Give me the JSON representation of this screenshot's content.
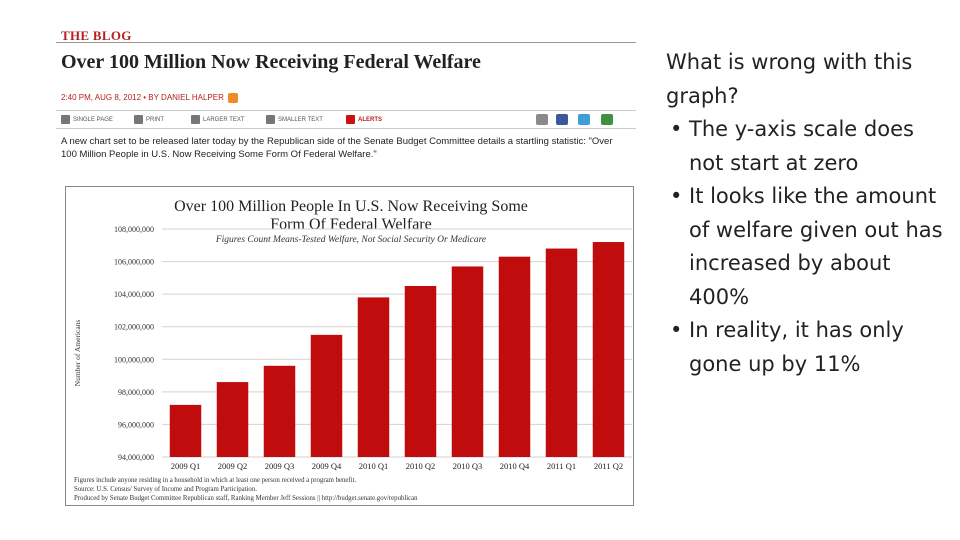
{
  "blog": {
    "tag": "THE BLOG",
    "headline": "Over 100 Million Now Receiving Federal Welfare",
    "byline": "2:40 PM, AUG 8, 2012 • BY DANIEL HALPER",
    "toolbar": [
      {
        "label": "SINGLE PAGE",
        "icon": "single-page-icon"
      },
      {
        "label": "PRINT",
        "icon": "printer-icon"
      },
      {
        "label": "LARGER TEXT",
        "icon": "larger-text-icon"
      },
      {
        "label": "SMALLER TEXT",
        "icon": "smaller-text-icon"
      },
      {
        "label": "ALERTS",
        "icon": "alert-icon"
      }
    ],
    "share_icons": [
      {
        "name": "email-icon",
        "color": "#8a8a8a"
      },
      {
        "name": "facebook-icon",
        "color": "#3b5998"
      },
      {
        "name": "twitter-icon",
        "color": "#3d9fd6"
      },
      {
        "name": "share-icon",
        "color": "#3f9142"
      }
    ],
    "intro": "A new chart set to be released later today by the Republican side of the Senate Budget Committee details a startling statistic: \"Over 100 Million People in U.S. Now Receiving Some Form Of Federal Welfare.\""
  },
  "chart_data": {
    "type": "bar",
    "title": "Over 100 Million People In U.S. Now Receiving Some Form Of Federal Welfare",
    "subtitle": "Figures Count Means-Tested Welfare, Not Social Security Or Medicare",
    "ylabel": "Number of Americans",
    "xlabel": "",
    "categories": [
      "2009 Q1",
      "2009 Q2",
      "2009 Q3",
      "2009 Q4",
      "2010 Q1",
      "2010 Q2",
      "2010 Q3",
      "2010 Q4",
      "2011 Q1",
      "2011 Q2"
    ],
    "values": [
      97200000,
      98600000,
      99600000,
      101500000,
      103800000,
      104500000,
      105700000,
      106300000,
      106800000,
      107200000
    ],
    "ylim": [
      94000000,
      108000000
    ],
    "yticks": [
      "94,000,000",
      "96,000,000",
      "98,000,000",
      "100,000,000",
      "102,000,000",
      "104,000,000",
      "106,000,000",
      "108,000,000"
    ],
    "grid": true,
    "bar_color": "#c00c0c",
    "footnotes": [
      "Figures include anyone residing in a household in which at least one person received a program benefit.",
      "Source: U.S. Census/ Survey of Income and Program Participation.",
      "Produced by Senate Budget Committee Republican staff, Ranking Member Jeff Sessions || http://budget.senate.gov/republican"
    ]
  },
  "slide": {
    "question": "What is wrong with this graph?",
    "bullets": [
      "The y-axis scale does not start at zero",
      "It looks like the amount of welfare given out has increased by about 400%",
      "In reality, it has only gone up by 11%"
    ]
  }
}
